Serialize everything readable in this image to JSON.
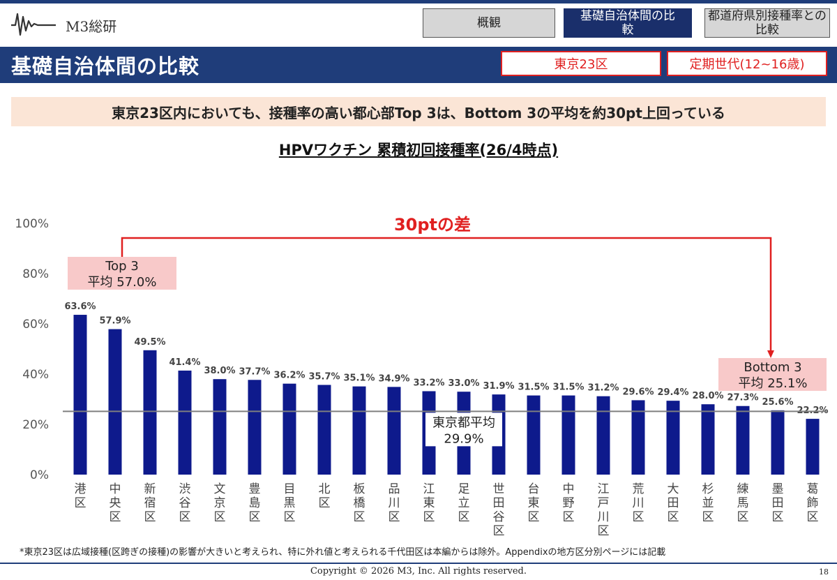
{
  "header": {
    "logo_text": "M3総研",
    "tabs": [
      {
        "label": "概観"
      },
      {
        "label": "基礎自治体間の比較"
      },
      {
        "label": "都道府県別接種率との比較"
      }
    ]
  },
  "title_bar": {
    "title": "基礎自治体間の比較",
    "badges": [
      "東京23区",
      "定期世代(12~16歳)"
    ]
  },
  "subtitle": "東京23区内においても、接種率の高い都心部Top 3は、Bottom 3の平均を約30pt上回っている",
  "colors": {
    "navy": "#1f3d7a",
    "bar": "#0e1a8c",
    "accent_red": "#e02020",
    "callout_pink": "#f8c9c9",
    "band_peach": "#fbe5d6"
  },
  "chart_data": {
    "type": "bar",
    "title": "HPVワクチン 累積初回接種率(26/4時点)",
    "categories": [
      "港区",
      "中央区",
      "新宿区",
      "渋谷区",
      "文京区",
      "豊島区",
      "目黒区",
      "北区",
      "板橋区",
      "品川区",
      "江東区",
      "足立区",
      "世田谷区",
      "台東区",
      "中野区",
      "江戸川区",
      "荒川区",
      "大田区",
      "杉並区",
      "練馬区",
      "墨田区",
      "葛飾区"
    ],
    "values": [
      63.6,
      57.9,
      49.5,
      41.4,
      38.0,
      37.7,
      36.2,
      35.7,
      35.1,
      34.9,
      33.2,
      33.0,
      31.9,
      31.5,
      31.5,
      31.2,
      29.6,
      29.4,
      28.0,
      27.3,
      25.6,
      22.2
    ],
    "value_labels": [
      "63.6%",
      "57.9%",
      "49.5%",
      "41.4%",
      "38.0%",
      "37.7%",
      "36.2%",
      "35.7%",
      "35.1%",
      "34.9%",
      "33.2%",
      "33.0%",
      "31.9%",
      "31.5%",
      "31.5%",
      "31.2%",
      "29.6%",
      "29.4%",
      "28.0%",
      "27.3%",
      "25.6%",
      "22.2%"
    ],
    "ylim": [
      0,
      100
    ],
    "yticks": [
      0,
      20,
      40,
      60,
      80,
      100
    ],
    "ytick_labels": [
      "0%",
      "20%",
      "40%",
      "60%",
      "80%",
      "100%"
    ],
    "reference_line": {
      "value": 29.9,
      "label_line1": "東京都平均",
      "label_line2": "29.9%"
    },
    "annotations": {
      "difference_label": "30ptの差",
      "top3": {
        "line1": "Top 3",
        "line2": "平均 57.0%",
        "value": 57.0
      },
      "bottom3": {
        "line1": "Bottom 3",
        "line2": "平均  25.1%",
        "value": 25.1
      }
    },
    "grid": false
  },
  "footnote": "*東京23区は広域接種(区跨ぎの接種)の影響が大きいと考えられ、特に外れ値と考えられる千代田区は本編からは除外。Appendixの地方区分別ページには記載",
  "footer": {
    "copyright": "Copyright © 2026  M3, Inc.  All rights reserved.",
    "page_number": "18"
  }
}
